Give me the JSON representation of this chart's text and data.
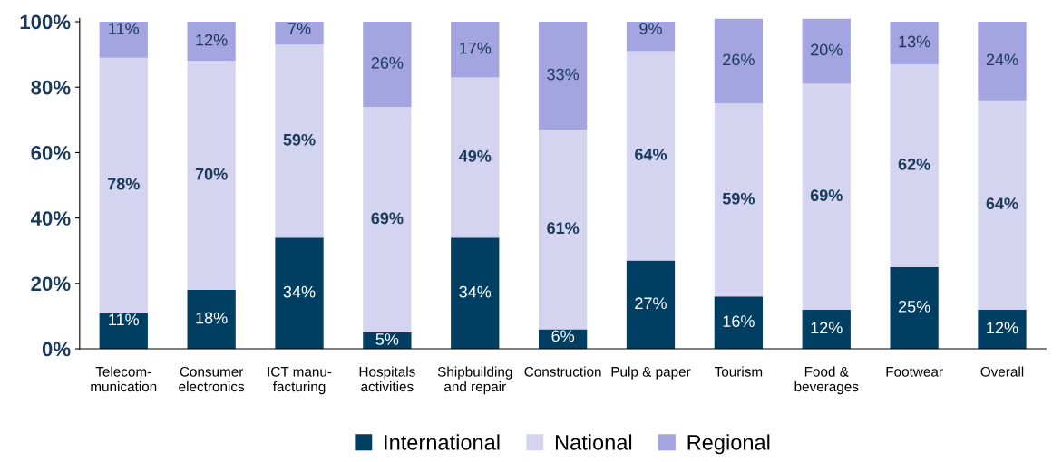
{
  "chart_data": {
    "type": "bar",
    "stacked": true,
    "categories": [
      "Telecom-\nmunication",
      "Consumer\nelectronics",
      "ICT manu-\nfacturing",
      "Hospitals\nactivities",
      "Shipbuilding\nand repair",
      "Construction",
      "Pulp & paper",
      "Tourism",
      "Food &\nbeverages",
      "Footwear",
      "Overall"
    ],
    "series": [
      {
        "name": "International",
        "color": "#003f62",
        "values": [
          11,
          18,
          34,
          5,
          34,
          6,
          27,
          16,
          12,
          25,
          12
        ],
        "value_labels": [
          "11%",
          "18%",
          "34%",
          "5%",
          "34%",
          "6%",
          "27%",
          "16%",
          "12%",
          "25%",
          "12%"
        ]
      },
      {
        "name": "National",
        "color": "#d4d4f0",
        "values": [
          78,
          70,
          59,
          69,
          49,
          61,
          64,
          59,
          69,
          62,
          64
        ],
        "value_labels": [
          "78%",
          "70%",
          "59%",
          "69%",
          "49%",
          "61%",
          "64%",
          "59%",
          "69%",
          "62%",
          "64%"
        ]
      },
      {
        "name": "Regional",
        "color": "#a4a4e0",
        "values": [
          11,
          12,
          7,
          26,
          17,
          33,
          9,
          26,
          20,
          13,
          24
        ],
        "value_labels": [
          "11%",
          "12%",
          "7%",
          "26%",
          "17%",
          "33%",
          "9%",
          "26%",
          "20%",
          "13%",
          "24%"
        ]
      }
    ],
    "ylim": [
      0,
      101
    ],
    "yticks": [
      {
        "value": 0,
        "label": "0%"
      },
      {
        "value": 20,
        "label": "20%"
      },
      {
        "value": 40,
        "label": "40%"
      },
      {
        "value": 60,
        "label": "60%"
      },
      {
        "value": 80,
        "label": "80%"
      },
      {
        "value": 100,
        "label": "100%"
      }
    ],
    "grid": false,
    "legend": "bottom"
  }
}
